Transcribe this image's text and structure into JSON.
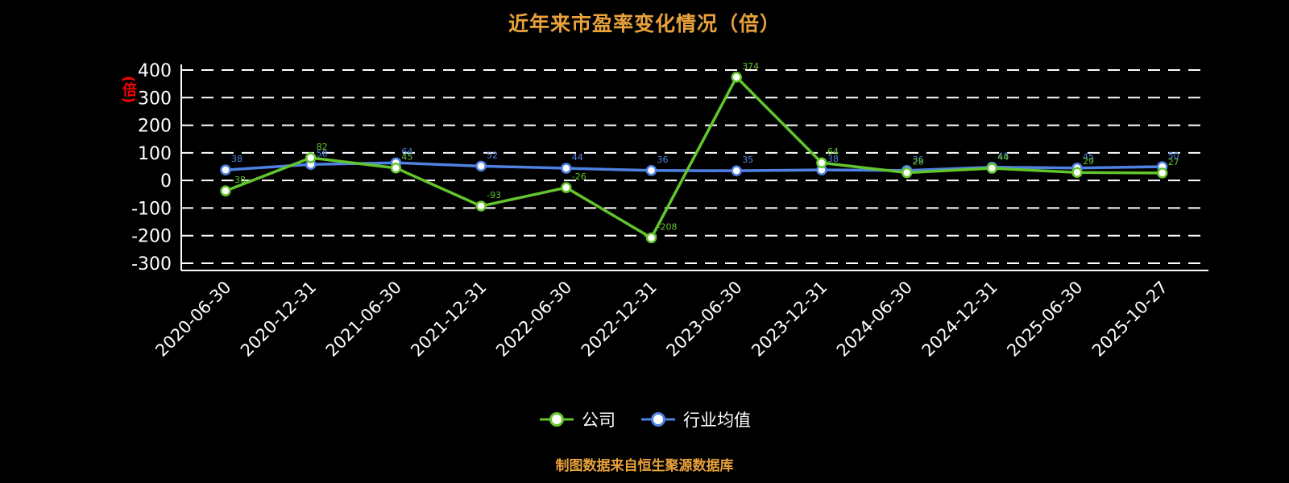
{
  "page": {
    "title": "近年来市盈率变化情况（倍）",
    "y_axis_unit": "(倍)",
    "footer": "制图数据来自恒生聚源数据库"
  },
  "colors": {
    "background": "#000000",
    "title": "#e9a23b",
    "footer": "#e9a23b",
    "grid": "#ffffff",
    "axis_text": "#ffffff",
    "unit_label": "#ff0000",
    "company": "#63c52d",
    "industry": "#4f81e3"
  },
  "chart_data": {
    "type": "line",
    "title": "近年来市盈率变化情况（倍）",
    "xlabel": "",
    "ylabel": "(倍)",
    "ylim": [
      -300,
      400
    ],
    "yticks": [
      400,
      300,
      200,
      100,
      0,
      -100,
      -200,
      -300
    ],
    "grid": "horizontal-dashed",
    "legend_position": "bottom",
    "categories": [
      "2020-06-30",
      "2020-12-31",
      "2021-06-30",
      "2021-12-31",
      "2022-06-30",
      "2022-12-31",
      "2023-06-30",
      "2023-12-31",
      "2024-06-30",
      "2024-12-31",
      "2025-06-30",
      "2025-10-27"
    ],
    "series": [
      {
        "name": "公司",
        "color_key": "company",
        "values": [
          -38,
          82,
          45,
          -93,
          -26,
          -208,
          374,
          64,
          28,
          44,
          29,
          27
        ]
      },
      {
        "name": "行业均值",
        "color_key": "industry",
        "values": [
          38,
          58,
          64,
          52,
          44,
          36,
          35,
          38,
          36,
          48,
          45,
          50
        ]
      }
    ]
  }
}
